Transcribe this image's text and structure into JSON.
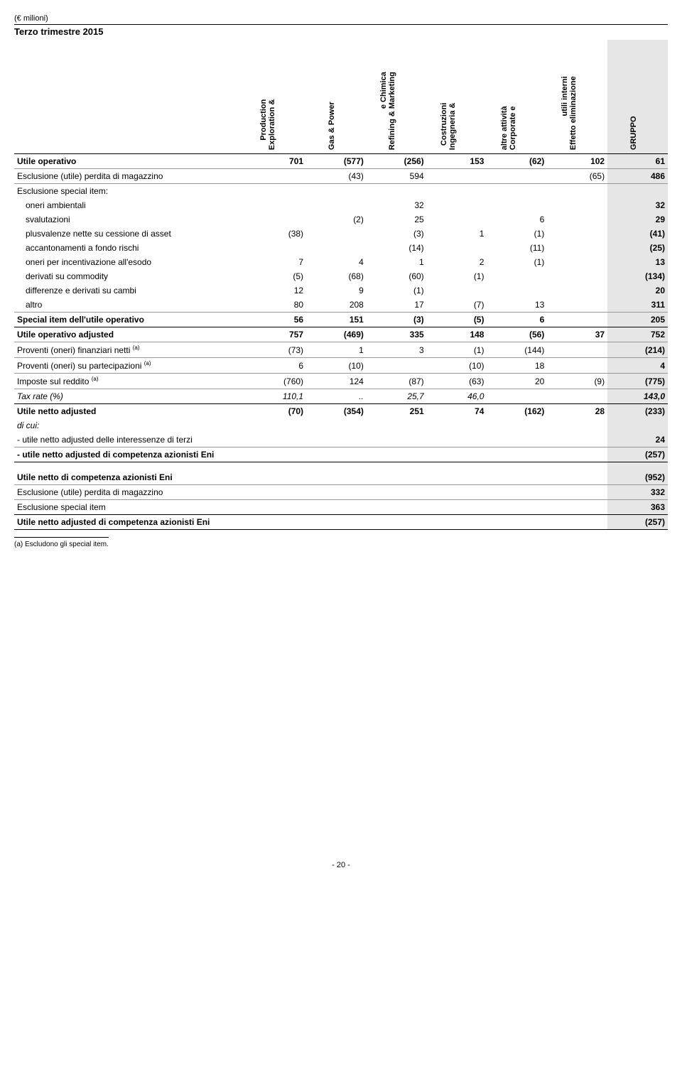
{
  "unit_label": "(€ milioni)",
  "period_title": "Terzo trimestre 2015",
  "columns": [
    {
      "line1": "Exploration &",
      "line2": "Production"
    },
    {
      "line1": "Gas & Power",
      "line2": ""
    },
    {
      "line1": "Refining & Marketing",
      "line2": "e Chimica"
    },
    {
      "line1": "Ingegneria &",
      "line2": "Costruzioni"
    },
    {
      "line1": "Corporate e",
      "line2": "altre attività"
    },
    {
      "line1": "Effetto eliminazione",
      "line2": "utili interni"
    },
    {
      "line1": "GRUPPO",
      "line2": ""
    }
  ],
  "rows": [
    {
      "label": "Utile operativo",
      "vals": [
        "701",
        "(577)",
        "(256)",
        "153",
        "(62)",
        "102",
        "61"
      ],
      "bold": true,
      "bt": true
    },
    {
      "label": "Esclusione (utile) perdita di magazzino",
      "vals": [
        "",
        "(43)",
        "594",
        "",
        "",
        "(65)",
        "486"
      ],
      "bt_thin": true
    },
    {
      "label": "Esclusione special item:",
      "vals": [
        "",
        "",
        "",
        "",
        "",
        "",
        ""
      ],
      "bt_thin": true
    },
    {
      "label": "oneri ambientali",
      "vals": [
        "",
        "",
        "32",
        "",
        "",
        "",
        "32"
      ],
      "indent": true
    },
    {
      "label": "svalutazioni",
      "vals": [
        "",
        "(2)",
        "25",
        "",
        "6",
        "",
        "29"
      ],
      "indent": true
    },
    {
      "label": "plusvalenze nette su cessione di asset",
      "vals": [
        "(38)",
        "",
        "(3)",
        "1",
        "(1)",
        "",
        "(41)"
      ],
      "indent": true
    },
    {
      "label": "accantonamenti a fondo rischi",
      "vals": [
        "",
        "",
        "(14)",
        "",
        "(11)",
        "",
        "(25)"
      ],
      "indent": true
    },
    {
      "label": "oneri per incentivazione all'esodo",
      "vals": [
        "7",
        "4",
        "1",
        "2",
        "(1)",
        "",
        "13"
      ],
      "indent": true
    },
    {
      "label": "derivati su commodity",
      "vals": [
        "(5)",
        "(68)",
        "(60)",
        "(1)",
        "",
        "",
        "(134)"
      ],
      "indent": true
    },
    {
      "label": "differenze e derivati su cambi",
      "vals": [
        "12",
        "9",
        "(1)",
        "",
        "",
        "",
        "20"
      ],
      "indent": true
    },
    {
      "label": "altro",
      "vals": [
        "80",
        "208",
        "17",
        "(7)",
        "13",
        "",
        "311"
      ],
      "indent": true
    },
    {
      "label": "Special item dell'utile operativo",
      "vals": [
        "56",
        "151",
        "(3)",
        "(5)",
        "6",
        "",
        "205"
      ],
      "bold": true,
      "bt_thin": true
    },
    {
      "label": "Utile operativo adjusted",
      "vals": [
        "757",
        "(469)",
        "335",
        "148",
        "(56)",
        "37",
        "752"
      ],
      "bold": true,
      "bt": true
    },
    {
      "label": "Proventi (oneri) finanziari netti <sup>(a)</sup>",
      "vals": [
        "(73)",
        "1",
        "3",
        "(1)",
        "(144)",
        "",
        "(214)"
      ],
      "bt_thin": true
    },
    {
      "label": "Proventi (oneri) su partecipazioni <sup>(a)</sup>",
      "vals": [
        "6",
        "(10)",
        "",
        "(10)",
        "18",
        "",
        "4"
      ],
      "bt_thin": true
    },
    {
      "label": "Imposte sul reddito <sup>(a)</sup>",
      "vals": [
        "(760)",
        "124",
        "(87)",
        "(63)",
        "20",
        "(9)",
        "(775)"
      ],
      "bt_thin": true
    },
    {
      "label": "Tax rate (%)",
      "vals": [
        "110,1",
        "..",
        "25,7",
        "46,0",
        "",
        "",
        "143,0"
      ],
      "italic": true,
      "bt_thin": true
    },
    {
      "label": "Utile netto adjusted",
      "vals": [
        "(70)",
        "(354)",
        "251",
        "74",
        "(162)",
        "28",
        "(233)"
      ],
      "bold": true,
      "bt": true
    },
    {
      "label": "di cui:",
      "vals": [
        "",
        "",
        "",
        "",
        "",
        "",
        ""
      ],
      "italic": true
    },
    {
      "label": "- utile netto adjusted delle interessenze di terzi",
      "vals": [
        "",
        "",
        "",
        "",
        "",
        "",
        "24"
      ]
    },
    {
      "label": "- utile netto adjusted di competenza azionisti Eni",
      "vals": [
        "",
        "",
        "",
        "",
        "",
        "",
        "(257)"
      ],
      "bold": true,
      "bt_thin": true
    }
  ],
  "lower_rows": [
    {
      "label": "Utile netto di competenza azionisti Eni",
      "vals": [
        "",
        "",
        "",
        "",
        "",
        "",
        "(952)"
      ],
      "bold": true,
      "bt": true,
      "gap": true
    },
    {
      "label": "Esclusione (utile) perdita di magazzino",
      "vals": [
        "",
        "",
        "",
        "",
        "",
        "",
        "332"
      ],
      "bt_thin": true
    },
    {
      "label": "Esclusione special item",
      "vals": [
        "",
        "",
        "",
        "",
        "",
        "",
        "363"
      ],
      "bt_thin": true
    },
    {
      "label": "Utile netto adjusted di competenza azionisti Eni",
      "vals": [
        "",
        "",
        "",
        "",
        "",
        "",
        "(257)"
      ],
      "bold": true,
      "bt": true,
      "bb": true
    }
  ],
  "footnote": "(a) Escludono gli special item.",
  "page_number": "- 20 -"
}
